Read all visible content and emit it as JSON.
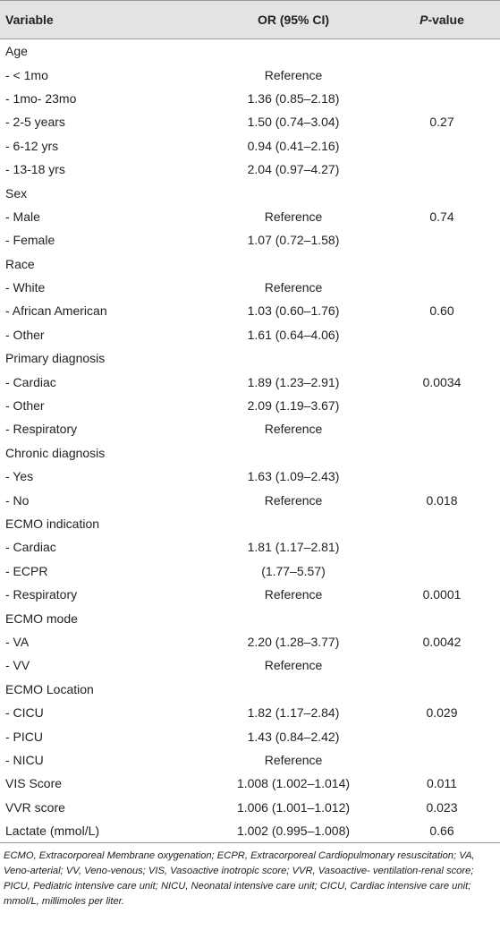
{
  "header": {
    "variable": "Variable",
    "or": "OR (95% CI)",
    "p_italic": "P",
    "p_rest": "-value"
  },
  "table": {
    "rows": [
      [
        "Age",
        null,
        null
      ],
      [
        "- < 1mo",
        "Reference",
        null
      ],
      [
        "- 1mo- 23mo",
        "1.36 (0.85–2.18)",
        null
      ],
      [
        "- 2-5 years",
        "1.50 (0.74–3.04)",
        "0.27"
      ],
      [
        "- 6-12 yrs",
        "0.94 (0.41–2.16)",
        null
      ],
      [
        "- 13-18 yrs",
        "2.04 (0.97–4.27)",
        null
      ],
      [
        "Sex",
        null,
        null
      ],
      [
        "- Male",
        "Reference",
        "0.74"
      ],
      [
        "- Female",
        "1.07 (0.72–1.58)",
        null
      ],
      [
        "Race",
        null,
        null
      ],
      [
        "- White",
        "Reference",
        null
      ],
      [
        "- African American",
        "1.03 (0.60–1.76)",
        "0.60"
      ],
      [
        "- Other",
        "1.61 (0.64–4.06)",
        null
      ],
      [
        "Primary diagnosis",
        null,
        null
      ],
      [
        "- Cardiac",
        "1.89 (1.23–2.91)",
        "0.0034"
      ],
      [
        "- Other",
        "2.09 (1.19–3.67)",
        null
      ],
      [
        "- Respiratory",
        "Reference",
        null
      ],
      [
        "Chronic diagnosis",
        null,
        null
      ],
      [
        "- Yes",
        "1.63 (1.09–2.43)",
        null
      ],
      [
        "- No",
        "Reference",
        "0.018"
      ],
      [
        "ECMO indication",
        null,
        null
      ],
      [
        "- Cardiac",
        "1.81 (1.17–2.81)",
        null
      ],
      [
        "- ECPR",
        "(1.77–5.57)",
        null
      ],
      [
        "- Respiratory",
        "Reference",
        "0.0001"
      ],
      [
        "ECMO mode",
        null,
        null
      ],
      [
        "- VA",
        "2.20 (1.28–3.77)",
        "0.0042"
      ],
      [
        "- VV",
        "Reference",
        null
      ],
      [
        "ECMO Location",
        null,
        null
      ],
      [
        "- CICU",
        "1.82 (1.17–2.84)",
        "0.029"
      ],
      [
        "- PICU",
        "1.43 (0.84–2.42)",
        null
      ],
      [
        "- NICU",
        "Reference",
        null
      ],
      [
        "VIS Score",
        "1.008 (1.002–1.014)",
        "0.011"
      ],
      [
        "VVR score",
        "1.006 (1.001–1.012)",
        "0.023"
      ],
      [
        "Lactate (mmol/L)",
        "1.002 (0.995–1.008)",
        "0.66"
      ]
    ]
  },
  "footnote": "ECMO, Extracorporeal Membrane oxygenation; ECPR, Extracorporeal Cardiopulmonary resuscitation; VA, Veno-arterial; VV, Veno-venous; VIS, Vasoactive inotropic score; VVR, Vasoactive- ventilation-renal score; PICU, Pediatric intensive care unit; NICU, Neonatal intensive care unit; CICU, Cardiac intensive care unit; mmol/L, millimoles per liter."
}
